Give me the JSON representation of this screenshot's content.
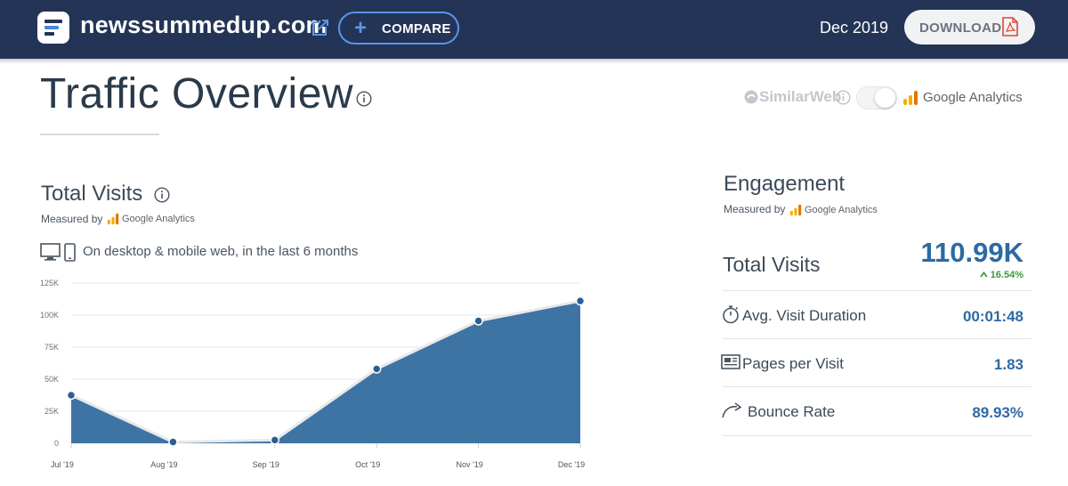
{
  "header": {
    "domain": "newssummedup.com",
    "compare_label": "COMPARE",
    "date": "Dec 2019",
    "download_label": "DOWNLOAD"
  },
  "page": {
    "title": "Traffic Overview"
  },
  "source_switch": {
    "similarweb_label": "SimilarWeb",
    "ga_label": "Google Analytics",
    "selected": "Google Analytics"
  },
  "total_visits": {
    "title": "Total Visits",
    "measured_by": "Measured by",
    "ga_label": "Google Analytics",
    "period_text": "On desktop & mobile web, in the last 6 months"
  },
  "chart_data": {
    "type": "area",
    "categories": [
      "Jul '19",
      "Aug '19",
      "Sep '19",
      "Oct '19",
      "Nov '19",
      "Dec '19"
    ],
    "values": [
      37500,
      1000,
      2500,
      58000,
      95500,
      111000
    ],
    "y_ticks": [
      "0",
      "25K",
      "50K",
      "75K",
      "100K",
      "125K"
    ],
    "ylim": [
      0,
      125000
    ],
    "grid": true,
    "color": "#3e74a3"
  },
  "engagement": {
    "title": "Engagement",
    "measured_by": "Measured by",
    "ga_label": "Google Analytics",
    "total_visits_label": "Total Visits",
    "total_visits_value": "110.99K",
    "total_visits_change": "16.54%",
    "metrics": [
      {
        "label": "Avg. Visit Duration",
        "value": "00:01:48",
        "icon": "stopwatch-icon"
      },
      {
        "label": "Pages per Visit",
        "value": "1.83",
        "icon": "pages-icon"
      },
      {
        "label": "Bounce Rate",
        "value": "89.93%",
        "icon": "bounce-arrow-icon"
      }
    ]
  },
  "colors": {
    "header_bg": "#243456",
    "accent_blue": "#5b95e8",
    "value_blue": "#2d6aa3",
    "positive_green": "#3c9a3c",
    "pdf_red": "#e0463c"
  }
}
